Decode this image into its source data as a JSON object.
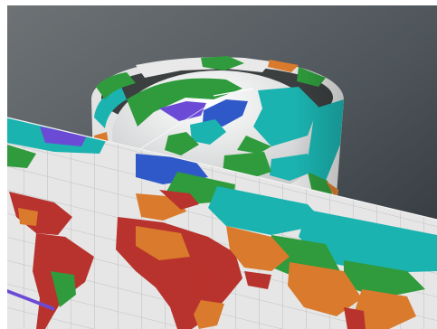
{
  "scene": {
    "subject": "3d-map-projections-render",
    "colors": {
      "background_top": "#6d7073",
      "background_bottom": "#2d3236",
      "ocean": "#e8e8e8",
      "grid": "#b9b9b9",
      "teal": "#1bb3b0",
      "green": "#2f9b3c",
      "red": "#b8332d",
      "orange": "#d97a2c",
      "purple": "#6b4bd6",
      "blue": "#2f59c9"
    }
  }
}
